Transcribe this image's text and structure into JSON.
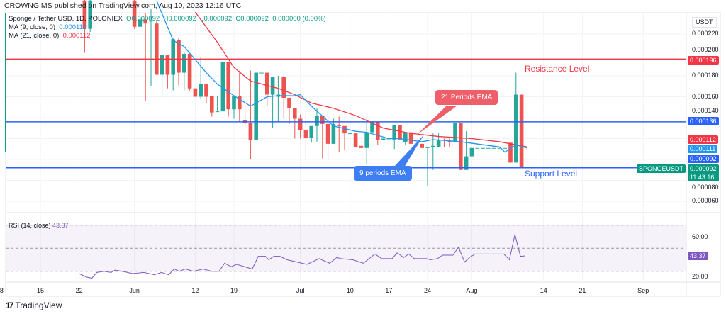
{
  "header": {
    "published": "CROWNGIMS published on TradingView.com, Aug 10, 2023 12:16 UTC"
  },
  "legend": {
    "symbol": "Sponge / Tether USD, 1D, POLONIEX",
    "open": "O0.000092",
    "high": "H0.000092",
    "low": "L0.000092",
    "close": "C0.000092",
    "change": "0.000000 (0.00%)",
    "ma9_label": "MA (9, close, 0)",
    "ma9_value": "0.000111",
    "ma21_label": "MA (21, close, 0)",
    "ma21_value": "0.000112"
  },
  "annotations": {
    "resistance": "Resistance Level",
    "support": "Support Level",
    "ema21": "21 Periods EMA",
    "ema9": "9 periods EMA"
  },
  "price_axis": {
    "currency": "USDT",
    "ticks": [
      "0.000220",
      "0.000200",
      "0.000180",
      "0.000160",
      "0.000140",
      "0.000080",
      "0.000060"
    ],
    "tags": {
      "resistance": "0.000196",
      "level_mid": "0.000136",
      "ma21": "0.000112",
      "ma9": "0.000111",
      "support": "0.000092",
      "last": "0.000092",
      "countdown": "11:43:16",
      "symbol_tag": "SPONGEUSDT"
    }
  },
  "rsi": {
    "label": "RSI (14, close)",
    "value": "43.37",
    "ticks": [
      "60.00",
      "20.00"
    ],
    "tag": "43.37"
  },
  "time_axis": [
    "8",
    "15",
    "22",
    "Jun",
    "12",
    "19",
    "Jul",
    "10",
    "17",
    "24",
    "Aug",
    "14",
    "21",
    "Sep"
  ],
  "footer": {
    "brand": "TradingView"
  },
  "colors": {
    "up": "#26a69a",
    "down": "#ef5350",
    "ma9": "#2196f3",
    "ma21": "#f23645",
    "resistance": "#f23645",
    "level": "#2962ff",
    "rsi": "#7e57c2"
  },
  "chart_data": {
    "type": "candlestick",
    "note_units": "price in USDT x 1e-6; d = days since May 15, 2023",
    "time_ticks_day": [
      -7,
      0,
      7,
      17,
      28,
      35,
      47,
      56,
      63,
      70,
      78,
      91,
      98,
      109
    ],
    "levels": {
      "resistance": 196,
      "mid": 136,
      "support": 92
    },
    "candles": [
      [
        8,
        252,
        255,
        202,
        225
      ],
      [
        9,
        225,
        255,
        222,
        252
      ],
      [
        17,
        252,
        255,
        225,
        227
      ],
      [
        18,
        227,
        240,
        226,
        234
      ],
      [
        19,
        234,
        240,
        156,
        230
      ],
      [
        20,
        232,
        244,
        170,
        233
      ],
      [
        21,
        230,
        232,
        181,
        181
      ],
      [
        22,
        181,
        200,
        160,
        200
      ],
      [
        23,
        200,
        200,
        168,
        181
      ],
      [
        24,
        181,
        216,
        166,
        215
      ],
      [
        25,
        214,
        216,
        171,
        183
      ],
      [
        26,
        183,
        203,
        166,
        201
      ],
      [
        27,
        201,
        201,
        166,
        168
      ],
      [
        28,
        168,
        168,
        160,
        160
      ],
      [
        29,
        160,
        198,
        158,
        172
      ],
      [
        30,
        172,
        172,
        154,
        160
      ],
      [
        31,
        161,
        161,
        141,
        145
      ],
      [
        32,
        146,
        161,
        146,
        146
      ],
      [
        33,
        146,
        195,
        146,
        193
      ],
      [
        34,
        193,
        193,
        141,
        148
      ],
      [
        35,
        148,
        161,
        139,
        161
      ],
      [
        36,
        161,
        185,
        136,
        148
      ],
      [
        37,
        138,
        151,
        129,
        135
      ],
      [
        38,
        135,
        185,
        100,
        119
      ],
      [
        39,
        119,
        183,
        119,
        183
      ],
      [
        40,
        183,
        183,
        183,
        183
      ],
      [
        41,
        183,
        183,
        151,
        162
      ],
      [
        42,
        162,
        179,
        130,
        179
      ],
      [
        43,
        160,
        180,
        136,
        162
      ],
      [
        44,
        179,
        180,
        139,
        159
      ],
      [
        45,
        159,
        159,
        134,
        149
      ],
      [
        46,
        149,
        149,
        120,
        139
      ],
      [
        47,
        139,
        143,
        120,
        128
      ],
      [
        48,
        128,
        144,
        100,
        121
      ],
      [
        49,
        121,
        132,
        116,
        132
      ],
      [
        50,
        132,
        149,
        117,
        142
      ],
      [
        51,
        142,
        142,
        101,
        134
      ],
      [
        52,
        134,
        141,
        100,
        115
      ],
      [
        53,
        115,
        139,
        115,
        134
      ],
      [
        54,
        133,
        141,
        107,
        132
      ],
      [
        55,
        132,
        132,
        109,
        125
      ],
      [
        56,
        125,
        125,
        125,
        125
      ],
      [
        57,
        125,
        125,
        112,
        112
      ],
      [
        58,
        113,
        113,
        111,
        111
      ],
      [
        59,
        111,
        139,
        95,
        126
      ],
      [
        60,
        126,
        136,
        126,
        136
      ],
      [
        61,
        136,
        136,
        114,
        119
      ],
      [
        62,
        119,
        120,
        119,
        120
      ],
      [
        63,
        120,
        120,
        120,
        120
      ],
      [
        64,
        119,
        133,
        110,
        133
      ],
      [
        65,
        133,
        133,
        119,
        119
      ],
      [
        66,
        117,
        126,
        114,
        126
      ],
      [
        67,
        126,
        126,
        115,
        115
      ],
      [
        68,
        115,
        115,
        115,
        115
      ],
      [
        69,
        115,
        115,
        111,
        111
      ],
      [
        70,
        111,
        112,
        75,
        112
      ],
      [
        71,
        112,
        125,
        90,
        113
      ],
      [
        72,
        112,
        125,
        112,
        119
      ],
      [
        73,
        119,
        120,
        112,
        118
      ],
      [
        74,
        118,
        120,
        112,
        117
      ],
      [
        75,
        117,
        135,
        117,
        135
      ],
      [
        76,
        135,
        135,
        90,
        90
      ],
      [
        77,
        90,
        127,
        90,
        103
      ],
      [
        78,
        103,
        111,
        103,
        111
      ],
      [
        79,
        111,
        111,
        111,
        111
      ],
      [
        80,
        111,
        111,
        111,
        111
      ],
      [
        81,
        111,
        111,
        111,
        111
      ],
      [
        82,
        111,
        111,
        111,
        111
      ],
      [
        83,
        111,
        111,
        111,
        111
      ],
      [
        84,
        111,
        111,
        111,
        111
      ],
      [
        85,
        116,
        117,
        97,
        97
      ],
      [
        86,
        97,
        183,
        97,
        162
      ],
      [
        87,
        162,
        162,
        92,
        92
      ]
    ],
    "ma9": [
      [
        21,
        252
      ],
      [
        24,
        214
      ],
      [
        26,
        208
      ],
      [
        30,
        183
      ],
      [
        32,
        172
      ],
      [
        35,
        161
      ],
      [
        38,
        151
      ],
      [
        41,
        160
      ],
      [
        43,
        161
      ],
      [
        46,
        161
      ],
      [
        47,
        162
      ],
      [
        49,
        151
      ],
      [
        53,
        132
      ],
      [
        57,
        127
      ],
      [
        59,
        126
      ],
      [
        63,
        120
      ],
      [
        65,
        120
      ],
      [
        69,
        117
      ],
      [
        71,
        119
      ],
      [
        76,
        117
      ],
      [
        83,
        112
      ],
      [
        84,
        107
      ],
      [
        86,
        114
      ],
      [
        88,
        111
      ]
    ],
    "ma21": [
      [
        28,
        241
      ],
      [
        32,
        212
      ],
      [
        35,
        188
      ],
      [
        38,
        175
      ],
      [
        43,
        168
      ],
      [
        46,
        162
      ],
      [
        49,
        154
      ],
      [
        53,
        149
      ],
      [
        57,
        142
      ],
      [
        62,
        130
      ],
      [
        67,
        125
      ],
      [
        72,
        122
      ],
      [
        78,
        120
      ],
      [
        83,
        117
      ],
      [
        88,
        112
      ]
    ],
    "rsi_series": [
      [
        7,
        28
      ],
      [
        8.3,
        25
      ],
      [
        9.3,
        24
      ],
      [
        10.2,
        29
      ],
      [
        11.5,
        30
      ],
      [
        12.8,
        29
      ],
      [
        13.5,
        31
      ],
      [
        14.8,
        30
      ],
      [
        16.7,
        28
      ],
      [
        18.7,
        29
      ],
      [
        20.6,
        27
      ],
      [
        21.9,
        29
      ],
      [
        23.2,
        27
      ],
      [
        24.2,
        32
      ],
      [
        25.1,
        30
      ],
      [
        26.2,
        32
      ],
      [
        27.7,
        30
      ],
      [
        29.4,
        32
      ],
      [
        31,
        30
      ],
      [
        32.3,
        30
      ],
      [
        33.3,
        37
      ],
      [
        34.5,
        34
      ],
      [
        35.5,
        36
      ],
      [
        38.3,
        32
      ],
      [
        39.4,
        43
      ],
      [
        40.7,
        43
      ],
      [
        41.3,
        40
      ],
      [
        42.2,
        43
      ],
      [
        43.3,
        43
      ],
      [
        44.6,
        40
      ],
      [
        48.2,
        36
      ],
      [
        50.4,
        41
      ],
      [
        52.3,
        37
      ],
      [
        53.6,
        42
      ],
      [
        54.3,
        41
      ],
      [
        56.5,
        40
      ],
      [
        58.4,
        37
      ],
      [
        59.7,
        42
      ],
      [
        60.5,
        45
      ],
      [
        61.7,
        41
      ],
      [
        63.6,
        41
      ],
      [
        64.5,
        46
      ],
      [
        65.7,
        42
      ],
      [
        66.6,
        45
      ],
      [
        67.6,
        41
      ],
      [
        69.8,
        41
      ],
      [
        70.5,
        40
      ],
      [
        71.8,
        41
      ],
      [
        72.7,
        44
      ],
      [
        74.6,
        44
      ],
      [
        75.6,
        51
      ],
      [
        76.7,
        38
      ],
      [
        77.6,
        42
      ],
      [
        78.6,
        45
      ],
      [
        83.8,
        45
      ],
      [
        84.8,
        40
      ],
      [
        85.8,
        62
      ],
      [
        86.8,
        43
      ],
      [
        87.7,
        43.4
      ]
    ],
    "rsi_bands": [
      70,
      50,
      30
    ],
    "ylim": [
      55,
      260
    ]
  }
}
